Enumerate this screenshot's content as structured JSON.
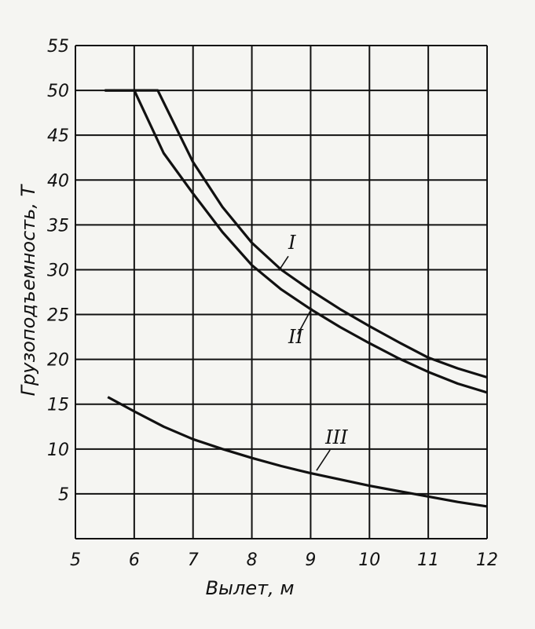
{
  "chart_data": {
    "type": "line",
    "xlabel": "Вылет, м",
    "ylabel": "Грузоподъемность, Т",
    "xlim": [
      5,
      12
    ],
    "ylim": [
      0,
      55
    ],
    "x_ticks": [
      5,
      6,
      7,
      8,
      9,
      10,
      11,
      12
    ],
    "y_ticks": [
      5,
      10,
      15,
      20,
      25,
      30,
      35,
      40,
      45,
      50,
      55
    ],
    "grid": true,
    "legend": "none",
    "series": [
      {
        "name": "I",
        "x": [
          5.5,
          6.0,
          6.4,
          7.0,
          7.5,
          8.0,
          8.5,
          9.0,
          9.5,
          10.0,
          10.5,
          11.0,
          11.5,
          12.0
        ],
        "y": [
          50,
          50,
          50,
          42,
          37,
          33,
          30,
          27.7,
          25.6,
          23.7,
          21.9,
          20.2,
          19.0,
          18.0
        ]
      },
      {
        "name": "II",
        "x": [
          5.5,
          6.0,
          6.5,
          7.0,
          7.5,
          8.0,
          8.5,
          9.0,
          9.5,
          10.0,
          10.5,
          11.0,
          11.5,
          12.0
        ],
        "y": [
          50,
          50,
          43,
          38.5,
          34.2,
          30.5,
          27.8,
          25.6,
          23.6,
          21.8,
          20.1,
          18.6,
          17.3,
          16.3
        ]
      },
      {
        "name": "III",
        "x": [
          5.55,
          6.0,
          6.5,
          7.0,
          7.5,
          8.0,
          8.5,
          9.0,
          9.5,
          10.0,
          10.5,
          11.0,
          11.5,
          12.0
        ],
        "y": [
          15.8,
          14.2,
          12.5,
          11.1,
          10.0,
          9.0,
          8.1,
          7.3,
          6.6,
          5.9,
          5.3,
          4.7,
          4.1,
          3.6
        ]
      }
    ]
  }
}
